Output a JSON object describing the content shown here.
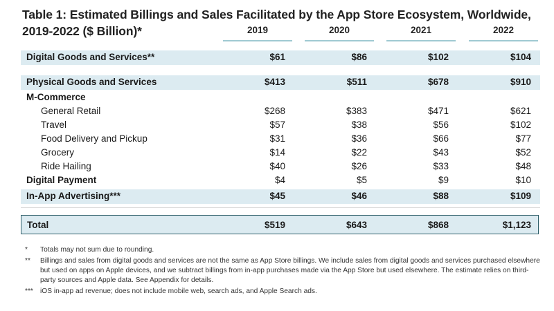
{
  "title": {
    "line1": "Table 1: Estimated Billings and Sales Facilitated by the App Store Ecosystem, Worldwide,",
    "line2": "2019-2022 ($ Billion)*"
  },
  "years": [
    "2019",
    "2020",
    "2021",
    "2022"
  ],
  "rows": {
    "digital_goods": {
      "label": "Digital Goods and Services**",
      "values": [
        "$61",
        "$86",
        "$102",
        "$104"
      ]
    },
    "physical_goods": {
      "label": "Physical Goods and Services",
      "values": [
        "$413",
        "$511",
        "$678",
        "$910"
      ]
    },
    "mcommerce": {
      "label": "M-Commerce"
    },
    "general_retail": {
      "label": "General Retail",
      "values": [
        "$268",
        "$383",
        "$471",
        "$621"
      ]
    },
    "travel": {
      "label": "Travel",
      "values": [
        "$57",
        "$38",
        "$56",
        "$102"
      ]
    },
    "food_delivery": {
      "label": "Food Delivery and Pickup",
      "values": [
        "$31",
        "$36",
        "$66",
        "$77"
      ]
    },
    "grocery": {
      "label": "Grocery",
      "values": [
        "$14",
        "$22",
        "$43",
        "$52"
      ]
    },
    "ride_hailing": {
      "label": "Ride Hailing",
      "values": [
        "$40",
        "$26",
        "$33",
        "$48"
      ]
    },
    "digital_payment": {
      "label": "Digital Payment",
      "values": [
        "$4",
        "$5",
        "$9",
        "$10"
      ]
    },
    "in_app_ads": {
      "label": "In-App Advertising***",
      "values": [
        "$45",
        "$46",
        "$88",
        "$109"
      ]
    },
    "total": {
      "label": "Total",
      "values": [
        "$519",
        "$643",
        "$868",
        "$1,123"
      ]
    }
  },
  "notes": [
    {
      "mark": "*",
      "text": "Totals may not sum due to rounding."
    },
    {
      "mark": "**",
      "text": "Billings and sales from digital goods and services are not the same as App Store billings. We include sales from digital goods and services purchased elsewhere but used on apps on Apple devices, and we subtract billings from in-app purchases made via the App Store but used elsewhere. The estimate relies on third-party sources and Apple data. See Appendix for details."
    },
    {
      "mark": "***",
      "text": "iOS in-app ad revenue; does not include mobile web, search ads, and Apple Search ads."
    }
  ],
  "colors": {
    "shade": "#dcebf1",
    "rule": "#9fc9d2",
    "border": "#2f5f6a"
  }
}
